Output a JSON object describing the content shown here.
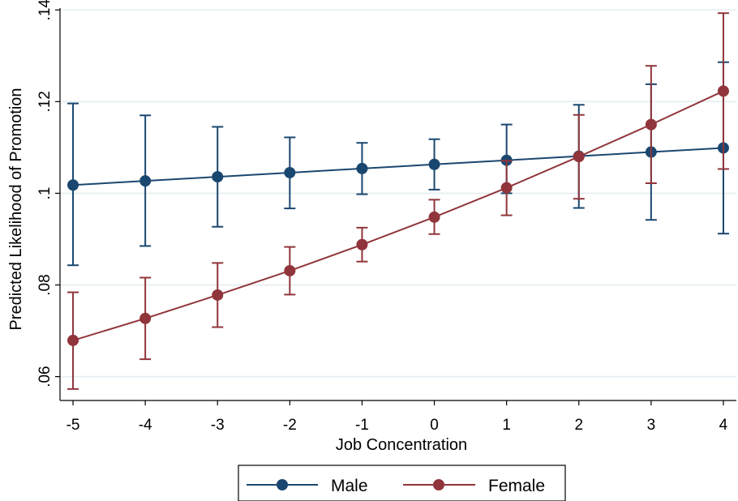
{
  "chart_data": {
    "type": "line",
    "xlabel": "Job Concentration",
    "ylabel": "Predicted Likelihood of Promotion",
    "x": [
      -5,
      -4,
      -3,
      -2,
      -1,
      0,
      1,
      2,
      3,
      4
    ],
    "x_tick_labels": [
      "-5",
      "-4",
      "-3",
      "-2",
      "-1",
      "0",
      "1",
      "2",
      "3",
      "4"
    ],
    "y_ticks": [
      0.06,
      0.08,
      0.1,
      0.12,
      0.14
    ],
    "y_tick_labels": [
      ".06",
      ".08",
      ".1",
      ".12",
      ".14"
    ],
    "ylim": [
      0.0548,
      0.1404
    ],
    "grid": true,
    "legend_position": "bottom",
    "series": [
      {
        "name": "Male",
        "color": "#1a476f",
        "marker": "circle",
        "values": [
          0.1018,
          0.1027,
          0.1036,
          0.1045,
          0.1054,
          0.1063,
          0.1072,
          0.1081,
          0.109,
          0.1099
        ],
        "ci_low": [
          0.0843,
          0.0885,
          0.0927,
          0.0967,
          0.0998,
          0.1008,
          0.1,
          0.0968,
          0.0942,
          0.0912
        ],
        "ci_high": [
          0.1196,
          0.117,
          0.1145,
          0.1122,
          0.111,
          0.1118,
          0.115,
          0.1193,
          0.1238,
          0.1286
        ]
      },
      {
        "name": "Female",
        "color": "#90353b",
        "marker": "circle",
        "values": [
          0.0679,
          0.0727,
          0.0778,
          0.0831,
          0.0888,
          0.0948,
          0.1012,
          0.108,
          0.115,
          0.1223
        ],
        "ci_low": [
          0.0573,
          0.0638,
          0.0708,
          0.0779,
          0.0851,
          0.0911,
          0.0952,
          0.0988,
          0.1022,
          0.1053
        ],
        "ci_high": [
          0.0784,
          0.0816,
          0.0848,
          0.0883,
          0.0925,
          0.0986,
          0.1071,
          0.1171,
          0.1278,
          0.1393
        ]
      }
    ]
  }
}
